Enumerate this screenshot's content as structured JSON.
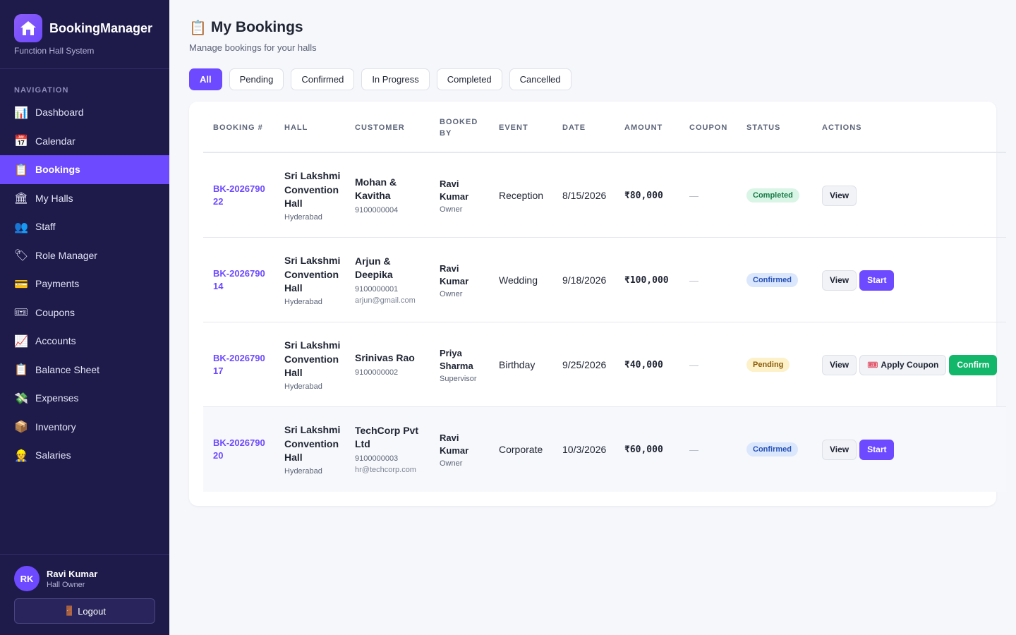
{
  "app": {
    "name": "BookingManager",
    "subtitle": "Function Hall System"
  },
  "sidebar": {
    "heading": "NAVIGATION",
    "items": [
      {
        "label": "Dashboard",
        "icon": "📊",
        "icon_name": "bar-chart-icon",
        "active": false
      },
      {
        "label": "Calendar",
        "icon": "📅",
        "icon_name": "calendar-icon",
        "active": false
      },
      {
        "label": "Bookings",
        "icon": "📋",
        "icon_name": "clipboard-icon",
        "active": true
      },
      {
        "label": "My Halls",
        "icon": "🏛",
        "icon_name": "building-icon",
        "active": false
      },
      {
        "label": "Staff",
        "icon": "👥",
        "icon_name": "people-icon",
        "active": false
      },
      {
        "label": "Role Manager",
        "icon": "🏷",
        "icon_name": "tag-icon",
        "active": false
      },
      {
        "label": "Payments",
        "icon": "💳",
        "icon_name": "credit-card-icon",
        "active": false
      },
      {
        "label": "Coupons",
        "icon": "🎟",
        "icon_name": "ticket-icon",
        "active": false
      },
      {
        "label": "Accounts",
        "icon": "📈",
        "icon_name": "trend-chart-icon",
        "active": false
      },
      {
        "label": "Balance Sheet",
        "icon": "📋",
        "icon_name": "clipboard-icon",
        "active": false
      },
      {
        "label": "Expenses",
        "icon": "💸",
        "icon_name": "money-wings-icon",
        "active": false
      },
      {
        "label": "Inventory",
        "icon": "📦",
        "icon_name": "package-icon",
        "active": false
      },
      {
        "label": "Salaries",
        "icon": "👷",
        "icon_name": "worker-icon",
        "active": false
      }
    ],
    "user": {
      "initials": "RK",
      "name": "Ravi Kumar",
      "role": "Hall Owner"
    },
    "logout": {
      "icon": "🚪",
      "label": "Logout"
    }
  },
  "main": {
    "title_icon": "📋",
    "title": "My Bookings",
    "subtitle": "Manage bookings for your halls",
    "filters": [
      "All",
      "Pending",
      "Confirmed",
      "In Progress",
      "Completed",
      "Cancelled"
    ],
    "active_filter": "All",
    "table": {
      "headers": [
        "BOOKING #",
        "HALL",
        "CUSTOMER",
        "BOOKED BY",
        "EVENT",
        "DATE",
        "AMOUNT",
        "COUPON",
        "STATUS",
        "ACTIONS"
      ],
      "rows": [
        {
          "booking": "BK-202679022",
          "hall": "Sri Lakshmi Convention Hall",
          "city": "Hyderabad",
          "customer": "Mohan & Kavitha",
          "phone": "9100000004",
          "email": "",
          "by": "Ravi Kumar",
          "by_role": "Owner",
          "event": "Reception",
          "date": "8/15/2026",
          "amount": "₹80,000",
          "coupon": "—",
          "status": "Completed",
          "status_key": "completed",
          "actions": [
            "View"
          ]
        },
        {
          "booking": "BK-202679014",
          "hall": "Sri Lakshmi Convention Hall",
          "city": "Hyderabad",
          "customer": "Arjun & Deepika",
          "phone": "9100000001",
          "email": "arjun@gmail.com",
          "by": "Ravi Kumar",
          "by_role": "Owner",
          "event": "Wedding",
          "date": "9/18/2026",
          "amount": "₹100,000",
          "coupon": "—",
          "status": "Confirmed",
          "status_key": "confirmed",
          "actions": [
            "View",
            "Start"
          ]
        },
        {
          "booking": "BK-202679017",
          "hall": "Sri Lakshmi Convention Hall",
          "city": "Hyderabad",
          "customer": "Srinivas Rao",
          "phone": "9100000002",
          "email": "",
          "by": "Priya Sharma",
          "by_role": "Supervisor",
          "event": "Birthday",
          "date": "9/25/2026",
          "amount": "₹40,000",
          "coupon": "—",
          "status": "Pending",
          "status_key": "pending",
          "actions": [
            "View",
            "Apply Coupon",
            "Confirm"
          ]
        },
        {
          "booking": "BK-202679020",
          "hall": "Sri Lakshmi Convention Hall",
          "city": "Hyderabad",
          "customer": "TechCorp Pvt Ltd",
          "phone": "9100000003",
          "email": "hr@techcorp.com",
          "by": "Ravi Kumar",
          "by_role": "Owner",
          "event": "Corporate",
          "date": "10/3/2026",
          "amount": "₹60,000",
          "coupon": "—",
          "status": "Confirmed",
          "status_key": "confirmed",
          "actions": [
            "View",
            "Start"
          ]
        }
      ],
      "coupon_icon": "🎟"
    }
  },
  "colors": {
    "accent": "#6d4aff",
    "sidebar_bg": "#1e1b4b",
    "confirm": "#12b76a"
  }
}
